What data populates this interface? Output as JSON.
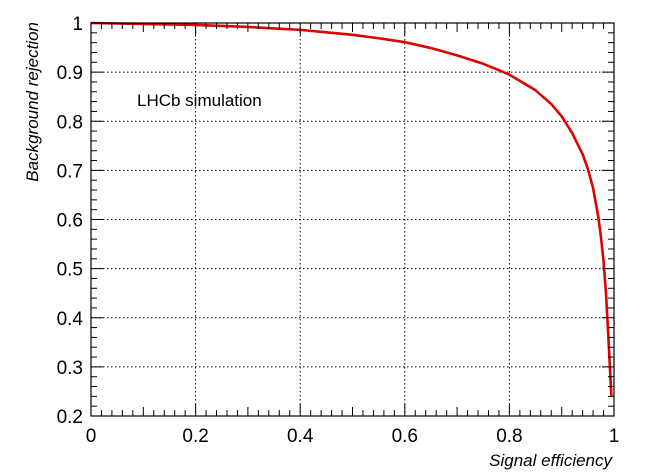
{
  "chart_data": {
    "type": "line",
    "title": "",
    "xlabel": "Signal efficiency",
    "ylabel": "Background rejection",
    "xlim": [
      0,
      1
    ],
    "ylim": [
      0.2,
      1
    ],
    "grid": true,
    "x_major_ticks": [
      0,
      0.2,
      0.4,
      0.6,
      0.8,
      1
    ],
    "x_tick_labels": [
      "0",
      "0.2",
      "0.4",
      "0.6",
      "0.8",
      "1"
    ],
    "y_major_ticks": [
      0.2,
      0.3,
      0.4,
      0.5,
      0.6,
      0.7,
      0.8,
      0.9,
      1
    ],
    "y_tick_labels": [
      "0.2",
      "0.3",
      "0.4",
      "0.5",
      "0.6",
      "0.7",
      "0.8",
      "0.9",
      "1"
    ],
    "annotations": [
      {
        "text": "LHCb simulation"
      }
    ],
    "series": [
      {
        "color": "#e00000",
        "x": [
          0.0,
          0.05,
          0.1,
          0.15,
          0.2,
          0.25,
          0.3,
          0.35,
          0.4,
          0.45,
          0.5,
          0.55,
          0.6,
          0.65,
          0.7,
          0.75,
          0.8,
          0.85,
          0.88,
          0.9,
          0.92,
          0.94,
          0.95,
          0.96,
          0.97,
          0.975,
          0.98,
          0.985,
          0.99,
          0.995
        ],
        "y": [
          1.0,
          0.999,
          0.998,
          0.997,
          0.996,
          0.994,
          0.992,
          0.989,
          0.986,
          0.981,
          0.976,
          0.969,
          0.961,
          0.949,
          0.934,
          0.917,
          0.895,
          0.863,
          0.835,
          0.81,
          0.776,
          0.733,
          0.703,
          0.664,
          0.605,
          0.565,
          0.515,
          0.445,
          0.345,
          0.24
        ]
      }
    ]
  }
}
